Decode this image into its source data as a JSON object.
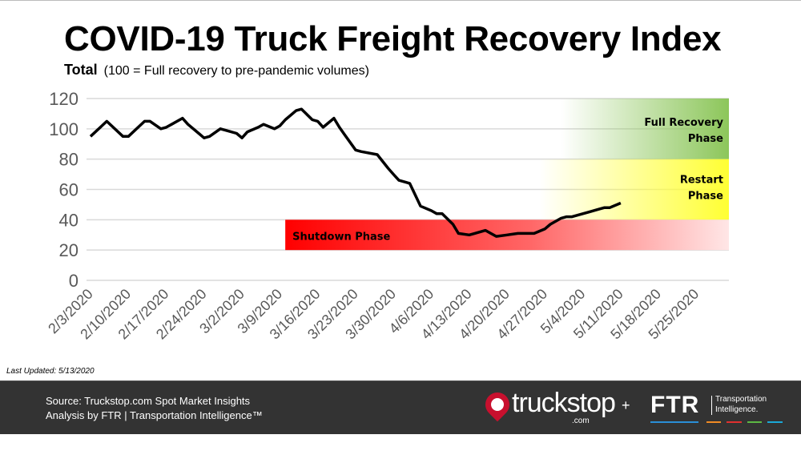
{
  "title": "COVID-19 Truck Freight Recovery Index",
  "subtitle_bold": "Total",
  "subtitle": "(100 = Full recovery to pre-pandemic volumes)",
  "last_updated": "Last Updated: 5/13/2020",
  "footer": {
    "source_line1": "Source: Truckstop.com Spot Market Insights",
    "source_line2": "Analysis by FTR | Transportation Intelligence™",
    "logo_truckstop": "truckstop",
    "logo_truckstop_com": ".com",
    "plus": "+",
    "logo_ftr": "FTR",
    "logo_ftr_sub1": "Transportation",
    "logo_ftr_sub2": "Intelligence.",
    "ftr_bar_colors": [
      "#2a8fd8",
      "#f08a24",
      "#e0302f",
      "#5cb843",
      "#1aa8d8"
    ]
  },
  "chart_data": {
    "type": "line",
    "title": "COVID-19 Truck Freight Recovery Index",
    "xlabel": "",
    "ylabel": "",
    "ylim": [
      0,
      120
    ],
    "yticks": [
      0,
      20,
      40,
      60,
      80,
      100,
      120
    ],
    "xlim": [
      "2020-02-03",
      "2020-05-31"
    ],
    "xtick_labels": [
      "2/3/2020",
      "2/10/2020",
      "2/17/2020",
      "2/24/2020",
      "3/2/2020",
      "3/9/2020",
      "3/16/2020",
      "3/23/2020",
      "3/30/2020",
      "4/6/2020",
      "4/13/2020",
      "4/20/2020",
      "4/27/2020",
      "5/4/2020",
      "5/11/2020",
      "5/18/2020",
      "5/25/2020"
    ],
    "grid": true,
    "line_color": "#000000",
    "series": [
      {
        "points": [
          [
            "2020-02-03",
            95
          ],
          [
            "2020-02-06",
            105
          ],
          [
            "2020-02-09",
            95
          ],
          [
            "2020-02-10",
            95
          ],
          [
            "2020-02-13",
            105
          ],
          [
            "2020-02-14",
            105
          ],
          [
            "2020-02-16",
            100
          ],
          [
            "2020-02-17",
            101
          ],
          [
            "2020-02-18",
            103
          ],
          [
            "2020-02-20",
            107
          ],
          [
            "2020-02-21",
            103
          ],
          [
            "2020-02-23",
            97
          ],
          [
            "2020-02-24",
            94
          ],
          [
            "2020-02-25",
            95
          ],
          [
            "2020-02-27",
            100
          ],
          [
            "2020-02-28",
            99
          ],
          [
            "2020-03-01",
            97
          ],
          [
            "2020-03-02",
            94
          ],
          [
            "2020-03-03",
            98
          ],
          [
            "2020-03-05",
            101
          ],
          [
            "2020-03-06",
            103
          ],
          [
            "2020-03-08",
            100
          ],
          [
            "2020-03-09",
            102
          ],
          [
            "2020-03-10",
            106
          ],
          [
            "2020-03-12",
            112
          ],
          [
            "2020-03-13",
            113
          ],
          [
            "2020-03-15",
            106
          ],
          [
            "2020-03-16",
            105
          ],
          [
            "2020-03-17",
            101
          ],
          [
            "2020-03-19",
            107
          ],
          [
            "2020-03-20",
            101
          ],
          [
            "2020-03-21",
            96
          ],
          [
            "2020-03-23",
            86
          ],
          [
            "2020-03-24",
            85
          ],
          [
            "2020-03-27",
            83
          ],
          [
            "2020-03-29",
            74
          ],
          [
            "2020-03-30",
            70
          ],
          [
            "2020-03-31",
            66
          ],
          [
            "2020-04-02",
            64
          ],
          [
            "2020-04-04",
            49
          ],
          [
            "2020-04-06",
            46
          ],
          [
            "2020-04-07",
            44
          ],
          [
            "2020-04-08",
            44
          ],
          [
            "2020-04-10",
            37
          ],
          [
            "2020-04-11",
            31
          ],
          [
            "2020-04-13",
            30
          ],
          [
            "2020-04-14",
            31
          ],
          [
            "2020-04-16",
            33
          ],
          [
            "2020-04-17",
            31
          ],
          [
            "2020-04-18",
            29
          ],
          [
            "2020-04-20",
            30
          ],
          [
            "2020-04-22",
            31
          ],
          [
            "2020-04-24",
            31
          ],
          [
            "2020-04-25",
            31
          ],
          [
            "2020-04-27",
            34
          ],
          [
            "2020-04-28",
            37
          ],
          [
            "2020-04-30",
            41
          ],
          [
            "2020-05-01",
            42
          ],
          [
            "2020-05-02",
            42
          ],
          [
            "2020-05-04",
            44
          ],
          [
            "2020-05-05",
            45
          ],
          [
            "2020-05-07",
            47
          ],
          [
            "2020-05-08",
            48
          ],
          [
            "2020-05-09",
            48
          ],
          [
            "2020-05-11",
            51
          ]
        ]
      }
    ],
    "bands": [
      {
        "label_line1": "Full Recovery",
        "label_line2": "Phase",
        "y_range": [
          80,
          120
        ],
        "start": "2020-04-30",
        "color": "#8cc65a"
      },
      {
        "label_line1": "Restart",
        "label_line2": "Phase",
        "y_range": [
          40,
          80
        ],
        "start": "2020-04-26",
        "color": "#ffff33"
      },
      {
        "label_line1": "Shutdown Phase",
        "label_line2": "",
        "y_range": [
          20,
          40
        ],
        "start": "2020-03-10",
        "color": "#ff0000"
      }
    ]
  }
}
